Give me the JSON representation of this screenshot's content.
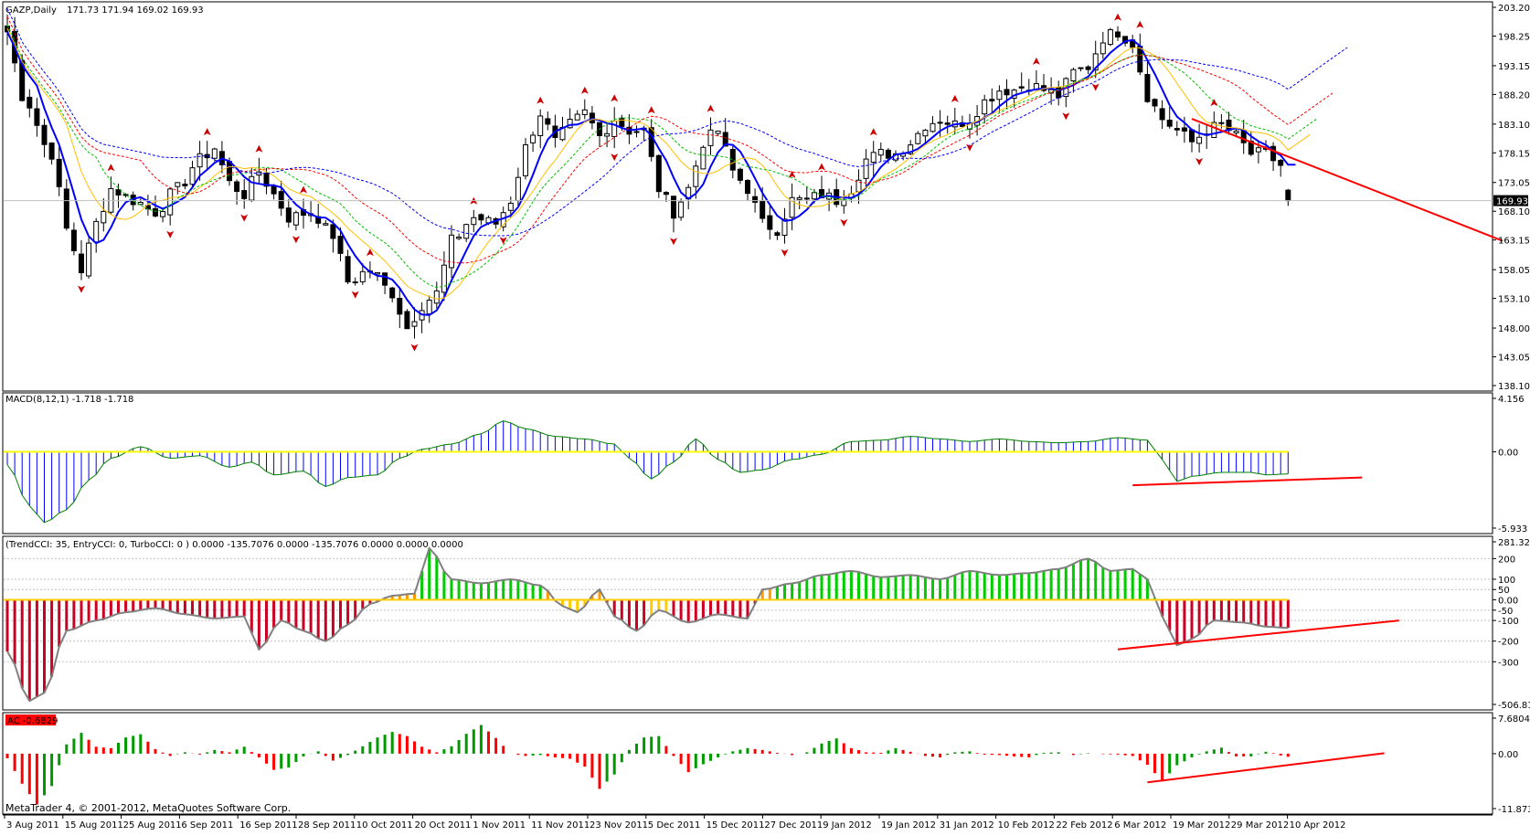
{
  "window": {
    "symbol_label": "GAZP,Daily",
    "ohlc_readout": "171.73 171.94 169.02 169.93",
    "current_price": "169.93",
    "footer": "MetaTrader 4, © 2001-2012, MetaQuotes Software Corp."
  },
  "colors": {
    "up_candle": "#ffffff",
    "down_candle": "#000000",
    "ma_main": "#0000ff",
    "ma_yellow": "#ffc000",
    "ma_green": "#00c000",
    "ma_red": "#ff0000",
    "ma_blue_dashed": "#0000ff",
    "macd_hist": "#0000ff",
    "macd_signal": "#008000",
    "macd_zero": "#ffff00",
    "cci_green": "#00cc00",
    "cci_red": "#cc0022",
    "cci_yellow": "#ffcc00",
    "cci_orange": "#ff9900",
    "cci_line": "#808080",
    "ac_up": "#009900",
    "ac_down": "#ff0000",
    "trendline": "#ff0000",
    "fractal_up": "#cc0000",
    "fractal_down": "#cc0000"
  },
  "chart_data": [
    {
      "type": "candlestick",
      "title": "GAZP,Daily",
      "y_ticks": [
        "203.20",
        "198.25",
        "193.15",
        "188.20",
        "183.10",
        "178.15",
        "173.05",
        "168.10",
        "163.15",
        "158.05",
        "153.10",
        "148.00",
        "143.05",
        "138.10"
      ],
      "ylim": [
        138.1,
        203.2
      ],
      "x_ticks": [
        "3 Aug 2011",
        "15 Aug 2011",
        "25 Aug 2011",
        "6 Sep 2011",
        "16 Sep 2011",
        "28 Sep 2011",
        "10 Oct 2011",
        "20 Oct 2011",
        "1 Nov 2011",
        "11 Nov 2011",
        "23 Nov 2011",
        "5 Dec 2011",
        "15 Dec 2011",
        "27 Dec 2011",
        "9 Jan 2012",
        "19 Jan 2012",
        "31 Jan 2012",
        "10 Feb 2012",
        "22 Feb 2012",
        "6 Mar 2012",
        "19 Mar 2012",
        "29 Mar 2012",
        "10 Apr 2012"
      ],
      "close_anchors": [
        [
          0,
          199
        ],
        [
          2,
          188
        ],
        [
          6,
          178
        ],
        [
          8,
          165
        ],
        [
          10,
          158
        ],
        [
          12,
          166
        ],
        [
          14,
          172
        ],
        [
          17,
          170
        ],
        [
          20,
          168
        ],
        [
          23,
          172
        ],
        [
          26,
          177
        ],
        [
          28,
          179
        ],
        [
          30,
          173
        ],
        [
          32,
          171
        ],
        [
          34,
          175
        ],
        [
          36,
          171
        ],
        [
          38,
          167
        ],
        [
          41,
          168
        ],
        [
          44,
          164
        ],
        [
          46,
          156
        ],
        [
          49,
          158
        ],
        [
          52,
          154
        ],
        [
          54,
          148
        ],
        [
          56,
          152
        ],
        [
          58,
          154
        ],
        [
          60,
          163
        ],
        [
          63,
          167
        ],
        [
          66,
          166
        ],
        [
          68,
          170
        ],
        [
          70,
          179
        ],
        [
          72,
          185
        ],
        [
          74,
          180
        ],
        [
          76,
          183
        ],
        [
          78,
          185
        ],
        [
          80,
          181
        ],
        [
          82,
          184
        ],
        [
          84,
          182
        ],
        [
          86,
          182
        ],
        [
          88,
          172
        ],
        [
          90,
          168
        ],
        [
          92,
          172
        ],
        [
          94,
          180
        ],
        [
          96,
          182
        ],
        [
          98,
          175
        ],
        [
          100,
          172
        ],
        [
          102,
          166
        ],
        [
          104,
          165
        ],
        [
          106,
          170
        ],
        [
          108,
          170
        ],
        [
          110,
          171
        ],
        [
          112,
          170
        ],
        [
          114,
          172
        ],
        [
          116,
          177
        ],
        [
          118,
          178
        ],
        [
          120,
          178
        ],
        [
          122,
          180
        ],
        [
          124,
          183
        ],
        [
          126,
          184
        ],
        [
          128,
          183
        ],
        [
          130,
          184
        ],
        [
          132,
          187
        ],
        [
          134,
          189
        ],
        [
          136,
          189
        ],
        [
          138,
          190
        ],
        [
          140,
          189
        ],
        [
          142,
          188
        ],
        [
          144,
          192
        ],
        [
          146,
          193
        ],
        [
          148,
          198
        ],
        [
          150,
          199
        ],
        [
          152,
          197
        ],
        [
          154,
          188
        ],
        [
          156,
          184
        ],
        [
          158,
          182
        ],
        [
          160,
          180
        ],
        [
          162,
          182
        ],
        [
          164,
          183
        ],
        [
          166,
          181
        ],
        [
          168,
          178
        ],
        [
          170,
          178
        ],
        [
          172,
          176
        ],
        [
          173,
          170
        ]
      ],
      "last_bar": {
        "open": 171.73,
        "high": 171.94,
        "low": 169.02,
        "close": 169.93
      },
      "moving_averages": [
        {
          "style": "solid",
          "period": 5
        },
        {
          "style": "solid",
          "period": 9
        },
        {
          "style": "dashed",
          "period": 13
        },
        {
          "style": "dashed",
          "period": 19
        },
        {
          "style": "dashed",
          "period": 28
        }
      ],
      "trendline": [
        [
          160,
          184
        ],
        [
          202,
          163
        ]
      ]
    },
    {
      "type": "histogram",
      "title": "MACD(8,12,1) -1.718 -1.718",
      "y_ticks": [
        "4.156",
        "0.00",
        "-5.933"
      ],
      "ylim": [
        -5.933,
        4.156
      ],
      "anchors": [
        [
          0,
          -1
        ],
        [
          3,
          -4.2
        ],
        [
          5,
          -5.5
        ],
        [
          8,
          -4.5
        ],
        [
          11,
          -2.2
        ],
        [
          14,
          -0.5
        ],
        [
          18,
          0.4
        ],
        [
          22,
          -0.5
        ],
        [
          26,
          -0.3
        ],
        [
          30,
          -1.2
        ],
        [
          33,
          -0.8
        ],
        [
          36,
          -1.8
        ],
        [
          40,
          -1.5
        ],
        [
          43,
          -2.7
        ],
        [
          46,
          -2.0
        ],
        [
          50,
          -1.8
        ],
        [
          53,
          -0.5
        ],
        [
          56,
          0.2
        ],
        [
          60,
          0.6
        ],
        [
          64,
          1.4
        ],
        [
          67,
          2.4
        ],
        [
          70,
          1.8
        ],
        [
          74,
          1.2
        ],
        [
          78,
          1.0
        ],
        [
          82,
          0.6
        ],
        [
          84,
          -0.5
        ],
        [
          87,
          -2.1
        ],
        [
          90,
          -0.8
        ],
        [
          93,
          1.0
        ],
        [
          96,
          -0.6
        ],
        [
          99,
          -1.6
        ],
        [
          102,
          -1.4
        ],
        [
          106,
          -0.6
        ],
        [
          110,
          -0.2
        ],
        [
          114,
          0.8
        ],
        [
          118,
          0.9
        ],
        [
          122,
          1.2
        ],
        [
          126,
          1.0
        ],
        [
          130,
          0.8
        ],
        [
          134,
          1.0
        ],
        [
          138,
          0.8
        ],
        [
          142,
          0.7
        ],
        [
          146,
          0.8
        ],
        [
          150,
          1.1
        ],
        [
          154,
          0.9
        ],
        [
          156,
          -0.6
        ],
        [
          158,
          -2.3
        ],
        [
          160,
          -1.9
        ],
        [
          164,
          -1.6
        ],
        [
          168,
          -1.6
        ],
        [
          170,
          -1.8
        ],
        [
          173,
          -1.72
        ]
      ],
      "trendline": [
        [
          152,
          -2.6
        ],
        [
          183,
          -2.0
        ]
      ]
    },
    {
      "type": "histogram",
      "title": "(TrendCCI: 35, EntryCCI: 0, TurboCCI: 0 ) 0.0000 -135.7076 0.0000 -135.7076 0.0000 0.0000 0.0000",
      "y_ticks": [
        "281.3227",
        "200",
        "100",
        "50",
        "0.00",
        "-50",
        "-100",
        "-200",
        "-300",
        "-506.8146"
      ],
      "ylim": [
        -506.8146,
        281.3227
      ],
      "anchors": [
        [
          0,
          -250
        ],
        [
          3,
          -490
        ],
        [
          5,
          -450
        ],
        [
          8,
          -150
        ],
        [
          12,
          -100
        ],
        [
          16,
          -60
        ],
        [
          20,
          -40
        ],
        [
          24,
          -70
        ],
        [
          28,
          -90
        ],
        [
          32,
          -80
        ],
        [
          34,
          -240
        ],
        [
          37,
          -100
        ],
        [
          40,
          -150
        ],
        [
          43,
          -200
        ],
        [
          46,
          -120
        ],
        [
          49,
          -20
        ],
        [
          52,
          20
        ],
        [
          55,
          30
        ],
        [
          57,
          250
        ],
        [
          60,
          100
        ],
        [
          64,
          80
        ],
        [
          68,
          100
        ],
        [
          72,
          70
        ],
        [
          75,
          -30
        ],
        [
          77,
          -60
        ],
        [
          80,
          50
        ],
        [
          82,
          -80
        ],
        [
          85,
          -150
        ],
        [
          88,
          -50
        ],
        [
          92,
          -110
        ],
        [
          96,
          -70
        ],
        [
          100,
          -90
        ],
        [
          102,
          50
        ],
        [
          106,
          80
        ],
        [
          110,
          120
        ],
        [
          114,
          140
        ],
        [
          118,
          110
        ],
        [
          122,
          120
        ],
        [
          126,
          100
        ],
        [
          130,
          140
        ],
        [
          134,
          120
        ],
        [
          138,
          130
        ],
        [
          142,
          150
        ],
        [
          146,
          200
        ],
        [
          149,
          140
        ],
        [
          152,
          150
        ],
        [
          154,
          100
        ],
        [
          156,
          -80
        ],
        [
          158,
          -220
        ],
        [
          160,
          -190
        ],
        [
          163,
          -100
        ],
        [
          167,
          -110
        ],
        [
          170,
          -130
        ],
        [
          173,
          -136
        ]
      ],
      "trendline": [
        [
          150,
          -240
        ],
        [
          188,
          -100
        ]
      ]
    },
    {
      "type": "histogram",
      "title": "AC -0.6829",
      "y_ticks": [
        "7.6804",
        "0.00",
        "-11.8736"
      ],
      "ylim": [
        -11.8736,
        7.6804
      ],
      "anchors": [
        [
          0,
          -1
        ],
        [
          2,
          -6.5
        ],
        [
          4,
          -11
        ],
        [
          6,
          -7
        ],
        [
          8,
          2
        ],
        [
          10,
          4.5
        ],
        [
          12,
          1.5
        ],
        [
          14,
          1.2
        ],
        [
          16,
          3.5
        ],
        [
          18,
          4.2
        ],
        [
          20,
          1
        ],
        [
          22,
          -0.5
        ],
        [
          24,
          0.3
        ],
        [
          26,
          -0.2
        ],
        [
          28,
          0.8
        ],
        [
          30,
          0.3
        ],
        [
          32,
          1.5
        ],
        [
          34,
          -0.8
        ],
        [
          36,
          -3.5
        ],
        [
          38,
          -3
        ],
        [
          40,
          -0.6
        ],
        [
          42,
          0.5
        ],
        [
          44,
          -1.5
        ],
        [
          46,
          -0.3
        ],
        [
          48,
          1.6
        ],
        [
          50,
          3.5
        ],
        [
          52,
          4.7
        ],
        [
          54,
          3.8
        ],
        [
          56,
          1.5
        ],
        [
          58,
          0.3
        ],
        [
          60,
          1.6
        ],
        [
          62,
          4.3
        ],
        [
          64,
          6.2
        ],
        [
          66,
          3.4
        ],
        [
          68,
          0
        ],
        [
          70,
          -0.5
        ],
        [
          72,
          -0.3
        ],
        [
          74,
          -0.8
        ],
        [
          76,
          -1.1
        ],
        [
          78,
          -2.8
        ],
        [
          80,
          -7.6
        ],
        [
          82,
          -4.5
        ],
        [
          84,
          0.8
        ],
        [
          86,
          3.5
        ],
        [
          88,
          3.8
        ],
        [
          90,
          -0.5
        ],
        [
          92,
          -4
        ],
        [
          94,
          -2.3
        ],
        [
          96,
          -0.8
        ],
        [
          98,
          0.5
        ],
        [
          100,
          1.2
        ],
        [
          102,
          0.8
        ],
        [
          104,
          0.2
        ],
        [
          106,
          -0.3
        ],
        [
          108,
          0.3
        ],
        [
          110,
          2.2
        ],
        [
          112,
          3.3
        ],
        [
          114,
          1.2
        ],
        [
          116,
          0.3
        ],
        [
          118,
          0.2
        ],
        [
          120,
          1.2
        ],
        [
          122,
          0.4
        ],
        [
          124,
          -0.5
        ],
        [
          126,
          -0.8
        ],
        [
          128,
          0.3
        ],
        [
          130,
          0.5
        ],
        [
          132,
          -0.2
        ],
        [
          134,
          -0.3
        ],
        [
          136,
          -0.6
        ],
        [
          138,
          -0.8
        ],
        [
          140,
          0.2
        ],
        [
          142,
          0.3
        ],
        [
          144,
          -0.3
        ],
        [
          146,
          0.1
        ],
        [
          148,
          -0.1
        ],
        [
          150,
          -0.2
        ],
        [
          152,
          -0.5
        ],
        [
          154,
          -2.4
        ],
        [
          156,
          -6
        ],
        [
          158,
          -2.5
        ],
        [
          160,
          -0.8
        ],
        [
          162,
          0.5
        ],
        [
          164,
          1.3
        ],
        [
          166,
          -0.6
        ],
        [
          168,
          -0.6
        ],
        [
          170,
          0.4
        ],
        [
          173,
          -0.68
        ]
      ],
      "trendline": [
        [
          154,
          -6.2
        ],
        [
          186,
          0.1
        ]
      ]
    }
  ]
}
